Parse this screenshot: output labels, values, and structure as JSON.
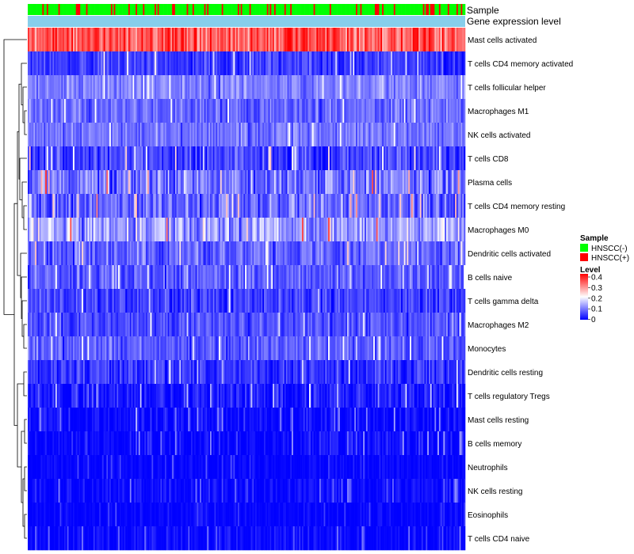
{
  "chart_data": {
    "type": "heatmap",
    "annotation_rows": [
      {
        "key": "sample",
        "label": "Sample"
      },
      {
        "key": "level",
        "label": "Gene expression level"
      }
    ],
    "rows": [
      {
        "name": "Mast cells activated",
        "mean": 0.33,
        "spread": 0.08,
        "clip": 0.45
      },
      {
        "name": "T cells CD4 memory activated",
        "mean": 0.05,
        "spread": 0.05,
        "clip": 0.25
      },
      {
        "name": "T cells follicular helper",
        "mean": 0.1,
        "spread": 0.05,
        "clip": 0.2
      },
      {
        "name": "Macrophages M1",
        "mean": 0.08,
        "spread": 0.05,
        "clip": 0.2
      },
      {
        "name": "NK cells activated",
        "mean": 0.09,
        "spread": 0.05,
        "clip": 0.2
      },
      {
        "name": "T cells CD8",
        "mean": 0.05,
        "spread": 0.06,
        "clip": 0.25
      },
      {
        "name": "Plasma cells",
        "mean": 0.09,
        "spread": 0.08,
        "clip": 0.4
      },
      {
        "name": "T cells CD4 memory resting",
        "mean": 0.08,
        "spread": 0.07,
        "clip": 0.3
      },
      {
        "name": "Macrophages M0",
        "mean": 0.13,
        "spread": 0.08,
        "clip": 0.35
      },
      {
        "name": "Dendritic cells activated",
        "mean": 0.08,
        "spread": 0.06,
        "clip": 0.25
      },
      {
        "name": "B cells naive",
        "mean": 0.07,
        "spread": 0.05,
        "clip": 0.2
      },
      {
        "name": "T cells gamma delta",
        "mean": 0.05,
        "spread": 0.05,
        "clip": 0.2
      },
      {
        "name": "Macrophages M2",
        "mean": 0.06,
        "spread": 0.05,
        "clip": 0.2
      },
      {
        "name": "Monocytes",
        "mean": 0.07,
        "spread": 0.05,
        "clip": 0.2
      },
      {
        "name": "Dendritic cells resting",
        "mean": 0.04,
        "spread": 0.05,
        "clip": 0.2
      },
      {
        "name": "T cells regulatory  Tregs",
        "mean": 0.02,
        "spread": 0.05,
        "clip": 0.2
      },
      {
        "name": "Mast cells resting",
        "mean": 0.005,
        "spread": 0.04,
        "clip": 0.2
      },
      {
        "name": "B cells memory",
        "mean": 0.005,
        "spread": 0.04,
        "clip": 0.2
      },
      {
        "name": "Neutrophils",
        "mean": 0.003,
        "spread": 0.02,
        "clip": 0.15
      },
      {
        "name": "NK cells resting",
        "mean": 0.005,
        "spread": 0.03,
        "clip": 0.15
      },
      {
        "name": "Eosinophils",
        "mean": 0.002,
        "spread": 0.02,
        "clip": 0.15
      },
      {
        "name": "T cells CD4 naive",
        "mean": 0.003,
        "spread": 0.03,
        "clip": 0.15
      }
    ],
    "sample_groups": [
      {
        "label": "HNSCC(-)",
        "color": "#00FF00"
      },
      {
        "label": "HNSCC(+)",
        "color": "#FF0000"
      }
    ],
    "expression_level_color": "#87CEEB",
    "num_samples": 300,
    "color_scale": {
      "min": 0,
      "max": 0.4,
      "low": "#0000FF",
      "mid": "#FFFFFF",
      "high": "#FF0000",
      "mid_value": 0.2
    },
    "legend": {
      "sample_title": "Sample",
      "level_title": "Level",
      "level_ticks": [
        "0.4",
        "0.3",
        "0.2",
        "0.1",
        "0"
      ]
    },
    "dendrogram": "rows clustered (hierarchical)",
    "title": ""
  },
  "colors": {
    "background": "#FFFFFF",
    "dendrogram": "#000000"
  }
}
